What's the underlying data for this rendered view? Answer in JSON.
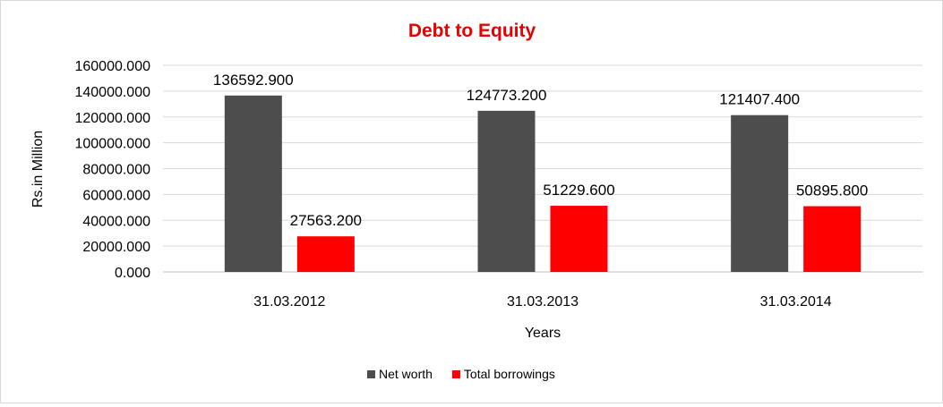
{
  "chart_data": {
    "type": "bar",
    "title": "Debt to Equity",
    "title_color": "#e60000",
    "xlabel": "Years",
    "ylabel": "Rs.in Million",
    "categories": [
      "31.03.2012",
      "31.03.2013",
      "31.03.2014"
    ],
    "series": [
      {
        "name": "Net worth",
        "color": "#4d4d4d",
        "values": [
          136592.9,
          124773.2,
          121407.4
        ],
        "labels": [
          "136592.900",
          "124773.200",
          "121407.400"
        ]
      },
      {
        "name": "Total borrowings",
        "color": "#ff0000",
        "values": [
          27563.2,
          51229.6,
          50895.8
        ],
        "labels": [
          "27563.200",
          "51229.600",
          "50895.800"
        ]
      }
    ],
    "ylim": [
      0,
      160000
    ],
    "yticks": [
      "0.000",
      "20000.000",
      "40000.000",
      "60000.000",
      "80000.000",
      "100000.000",
      "120000.000",
      "140000.000",
      "160000.000"
    ],
    "grid": true,
    "legend_position": "bottom"
  }
}
